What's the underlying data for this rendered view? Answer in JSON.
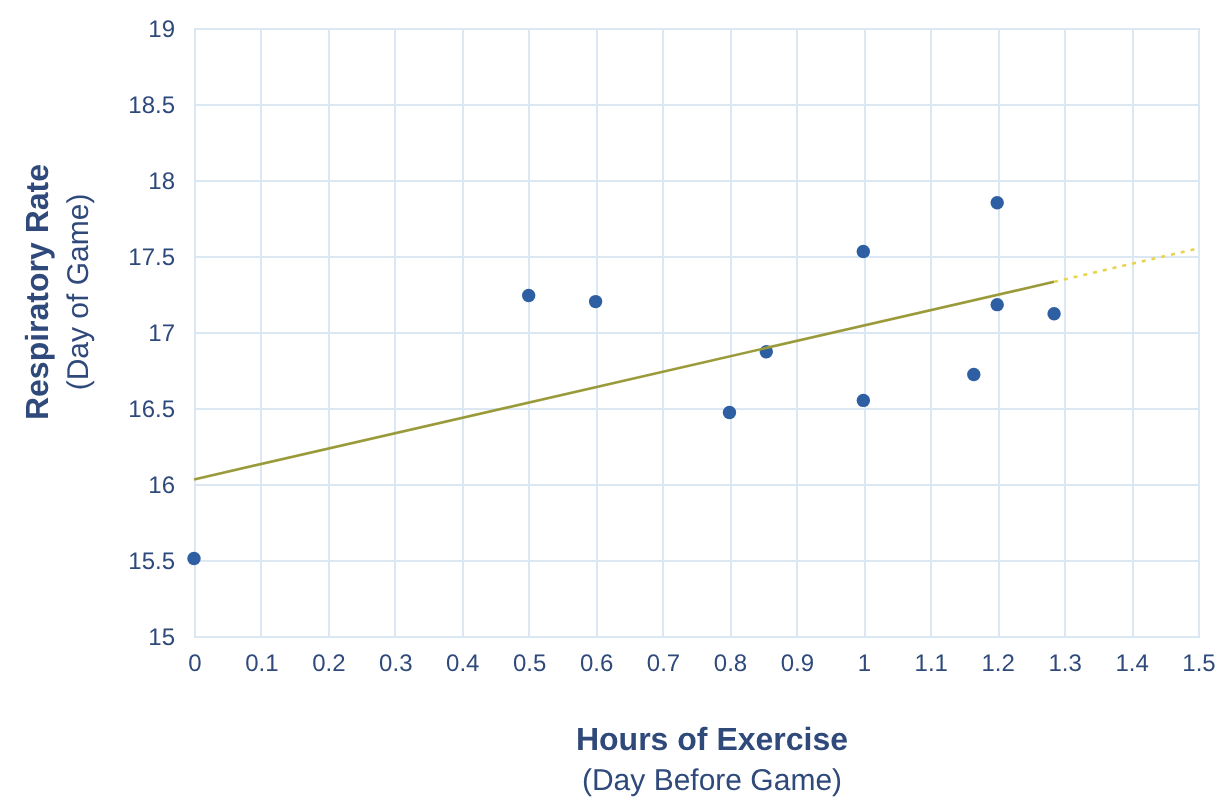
{
  "chart_data": {
    "type": "scatter",
    "xlabel": "Hours of Exercise\n(Day Before Game)",
    "ylabel": "Respiratory Rate\n(Day of Game)",
    "xlim": [
      0,
      1.5
    ],
    "xticks": [
      0,
      0.1,
      0.2,
      0.3,
      0.4,
      0.5,
      0.6,
      0.7,
      0.8,
      0.9,
      1,
      1.1,
      1.2,
      1.3,
      1.4,
      1.5
    ],
    "ylim": [
      15,
      19
    ],
    "yticks": [
      15,
      15.5,
      16,
      16.5,
      17,
      17.5,
      18,
      18.5,
      19
    ],
    "grid": true,
    "series": [
      {
        "marker": "circle",
        "color": "#2e5fa3",
        "x": [
          0,
          0.5,
          0.6,
          0.8,
          0.855,
          1.0,
          1.0,
          1.165,
          1.2,
          1.2,
          1.285
        ],
        "values": [
          15.51,
          17.24,
          17.2,
          16.47,
          16.87,
          17.53,
          16.55,
          16.72,
          17.85,
          17.18,
          17.12
        ]
      },
      {
        "type": "line",
        "color": "#9a9a3a",
        "line_style": "solid",
        "x": [
          0,
          1.285
        ],
        "values": [
          16.03,
          17.33
        ]
      },
      {
        "type": "line",
        "color": "#e8d44a",
        "line_style": "dotted",
        "x": [
          1.285,
          1.5
        ],
        "values": [
          17.33,
          17.55
        ]
      }
    ]
  }
}
